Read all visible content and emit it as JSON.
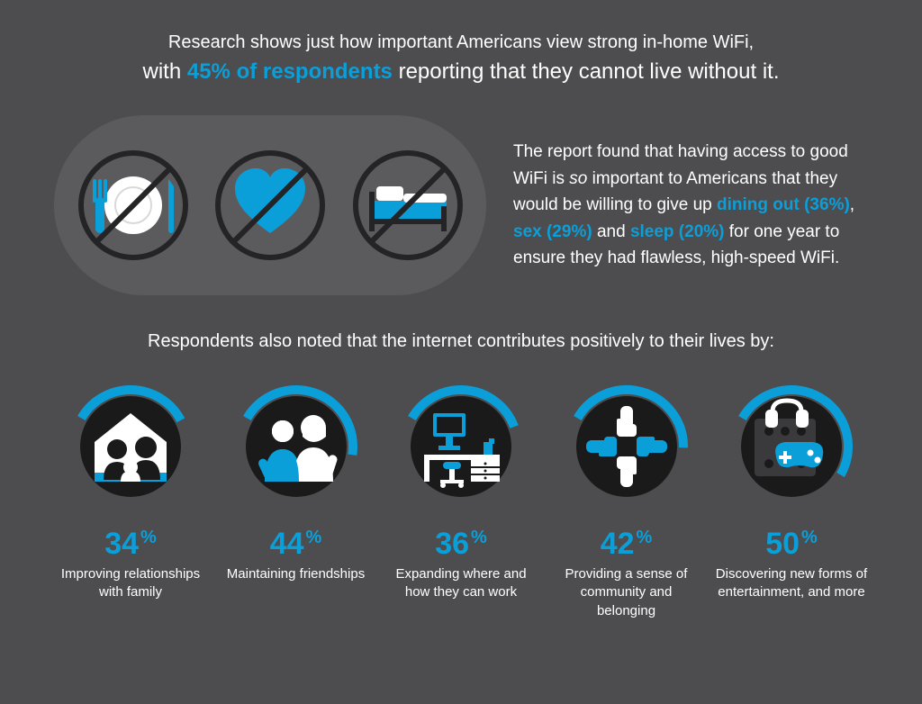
{
  "colors": {
    "background": "#4d4d4f",
    "bubble": "#5b5b5e",
    "accent": "#0b9fda",
    "text": "#ffffff",
    "icon_dark": "#1a1a1a",
    "stroke_dark": "#242426",
    "donut_track": "#1a1a1a"
  },
  "headline": {
    "line1": "Research shows just how important Americans view strong in-home WiFi,",
    "line2_pre": "with ",
    "line2_accent": "45% of respondents",
    "line2_post": " reporting that they cannot live without it."
  },
  "giveup": {
    "text_pre": "The report found that having access to good WiFi is ",
    "text_so": "so",
    "text_mid1": " important to Americans that they would be willing to give up ",
    "dining": "dining out (36%)",
    "sep1": ", ",
    "sex": "sex (29%)",
    "sep2": " and ",
    "sleep": "sleep (20%)",
    "text_post": " for one year to ensure they had flawless, high-speed WiFi.",
    "dining_pct": 36,
    "sex_pct": 29,
    "sleep_pct": 20
  },
  "subhead": "Respondents also noted that the internet contributes positively to their lives by:",
  "stats": [
    {
      "value": 34,
      "label": "Improving relationships with family",
      "icon": "family"
    },
    {
      "value": 44,
      "label": "Maintaining friendships",
      "icon": "friends"
    },
    {
      "value": 36,
      "label": "Expanding where and how they can work",
      "icon": "desk"
    },
    {
      "value": 42,
      "label": "Providing a sense of community and belonging",
      "icon": "hands"
    },
    {
      "value": 50,
      "label": "Discovering new forms of entertainment, and more",
      "icon": "entertainment"
    }
  ],
  "donut": {
    "radius": 63,
    "stroke_width": 10,
    "start_angle_deg": -60
  }
}
